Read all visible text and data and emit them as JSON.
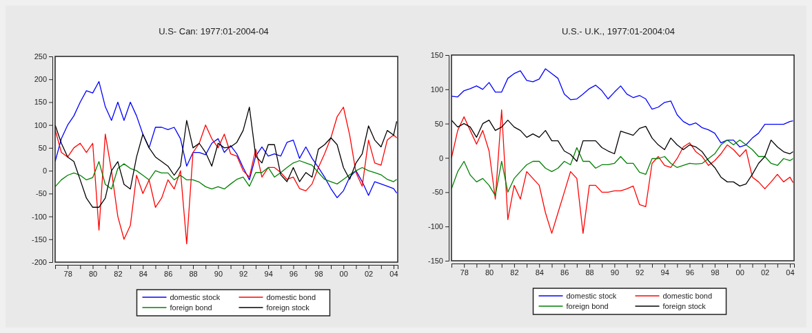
{
  "chart_data": [
    {
      "type": "line",
      "title": "U.S- Can: 1977:01-2004-04",
      "legend": "bottom",
      "grid": false,
      "x": [
        "1977-01",
        "1977-07",
        "1978-01",
        "1978-07",
        "1979-01",
        "1979-07",
        "1980-01",
        "1980-07",
        "1981-01",
        "1981-07",
        "1982-01",
        "1982-07",
        "1983-01",
        "1983-07",
        "1984-01",
        "1984-07",
        "1985-01",
        "1985-07",
        "1986-01",
        "1986-07",
        "1987-01",
        "1987-07",
        "1988-01",
        "1988-07",
        "1989-01",
        "1989-07",
        "1990-01",
        "1990-07",
        "1991-01",
        "1991-07",
        "1992-01",
        "1992-07",
        "1993-01",
        "1993-07",
        "1994-01",
        "1994-07",
        "1995-01",
        "1995-07",
        "1996-01",
        "1996-07",
        "1997-01",
        "1997-07",
        "1998-01",
        "1998-07",
        "1999-01",
        "1999-07",
        "2000-01",
        "2000-07",
        "2001-01",
        "2001-07",
        "2002-01",
        "2002-07",
        "2003-01",
        "2003-07",
        "2004-01",
        "2004-04"
      ],
      "xlim": [
        "1977-01",
        "2004-05"
      ],
      "xticks": [
        {
          "value": "1977",
          "label": null
        },
        {
          "value": "1978",
          "label": "78"
        },
        {
          "value": "1979",
          "label": null
        },
        {
          "value": "1980",
          "label": "80"
        },
        {
          "value": "1981",
          "label": null
        },
        {
          "value": "1982",
          "label": "82"
        },
        {
          "value": "1983",
          "label": null
        },
        {
          "value": "1984",
          "label": "84"
        },
        {
          "value": "1985",
          "label": null
        },
        {
          "value": "1986",
          "label": "86"
        },
        {
          "value": "1987",
          "label": null
        },
        {
          "value": "1988",
          "label": "88"
        },
        {
          "value": "1989",
          "label": null
        },
        {
          "value": "1990",
          "label": "90"
        },
        {
          "value": "1991",
          "label": null
        },
        {
          "value": "1992",
          "label": "92"
        },
        {
          "value": "1993",
          "label": null
        },
        {
          "value": "1994",
          "label": "94"
        },
        {
          "value": "1995",
          "label": null
        },
        {
          "value": "1996",
          "label": "96"
        },
        {
          "value": "1997",
          "label": null
        },
        {
          "value": "1998",
          "label": "98"
        },
        {
          "value": "1999",
          "label": null
        },
        {
          "value": "2000",
          "label": "00"
        },
        {
          "value": "2001",
          "label": null
        },
        {
          "value": "2002",
          "label": "02"
        },
        {
          "value": "2003",
          "label": null
        },
        {
          "value": "2004",
          "label": "04"
        }
      ],
      "ylim": [
        -200,
        250
      ],
      "yticks": [
        -200,
        -150,
        -100,
        -50,
        0,
        50,
        100,
        150,
        200,
        250
      ],
      "series": [
        {
          "name": "domestic stock",
          "color": "#0000ff",
          "values": [
            20,
            70,
            100,
            120,
            150,
            175,
            170,
            195,
            140,
            110,
            150,
            110,
            150,
            120,
            80,
            50,
            95,
            95,
            90,
            95,
            70,
            10,
            40,
            40,
            35,
            60,
            70,
            40,
            55,
            37,
            7,
            -20,
            32,
            52,
            32,
            37,
            32,
            62,
            67,
            27,
            52,
            27,
            7,
            -14,
            -39,
            -59,
            -44,
            -14,
            0,
            -24,
            -54,
            -24,
            -29,
            -34,
            -39,
            -49
          ]
        },
        {
          "name": "domestic bond",
          "color": "#ff0000",
          "values": [
            90,
            40,
            30,
            50,
            60,
            40,
            60,
            -130,
            80,
            0,
            -100,
            -150,
            -120,
            -10,
            -50,
            -20,
            -80,
            -60,
            -20,
            -40,
            0,
            -160,
            40,
            60,
            100,
            70,
            50,
            80,
            37,
            32,
            0,
            -14,
            47,
            -14,
            7,
            7,
            -4,
            -19,
            -14,
            -39,
            -44,
            -29,
            7,
            37,
            72,
            118,
            139,
            78,
            -4,
            -34,
            67,
            17,
            12,
            67,
            78,
            72
          ]
        },
        {
          "name": "foreign bond",
          "color": "#008000",
          "values": [
            -35,
            -20,
            -10,
            -5,
            -10,
            -20,
            -15,
            20,
            -30,
            -40,
            5,
            15,
            5,
            0,
            -10,
            -20,
            0,
            -5,
            -5,
            -20,
            -10,
            -20,
            -20,
            -25,
            -35,
            -40,
            -35,
            -40,
            -29,
            -19,
            -14,
            -34,
            -4,
            -4,
            7,
            -14,
            -4,
            7,
            17,
            22,
            17,
            12,
            -4,
            -19,
            -24,
            -29,
            -19,
            -9,
            0,
            7,
            0,
            -4,
            -9,
            -19,
            -24,
            -19
          ]
        },
        {
          "name": "foreign stock",
          "color": "#000000",
          "values": [
            100,
            60,
            30,
            20,
            -20,
            -60,
            -80,
            -80,
            -60,
            0,
            20,
            -30,
            -40,
            30,
            80,
            50,
            30,
            20,
            10,
            -10,
            10,
            110,
            50,
            60,
            40,
            10,
            60,
            50,
            52,
            62,
            88,
            139,
            32,
            17,
            57,
            57,
            -9,
            -24,
            7,
            -24,
            -4,
            -14,
            47,
            57,
            72,
            57,
            7,
            -19,
            17,
            37,
            98,
            67,
            52,
            88,
            78,
            108
          ]
        }
      ]
    },
    {
      "type": "line",
      "title": "U.S.- U.K., 1977:01-2004:04",
      "legend": "bottom",
      "grid": false,
      "x": [
        "1977-01",
        "1977-07",
        "1978-01",
        "1978-07",
        "1979-01",
        "1979-07",
        "1980-01",
        "1980-07",
        "1981-01",
        "1981-07",
        "1982-01",
        "1982-07",
        "1983-01",
        "1983-07",
        "1984-01",
        "1984-07",
        "1985-01",
        "1985-07",
        "1986-01",
        "1986-07",
        "1987-01",
        "1987-07",
        "1988-01",
        "1988-07",
        "1989-01",
        "1989-07",
        "1990-01",
        "1990-07",
        "1991-01",
        "1991-07",
        "1992-01",
        "1992-07",
        "1993-01",
        "1993-07",
        "1994-01",
        "1994-07",
        "1995-01",
        "1995-07",
        "1996-01",
        "1996-07",
        "1997-01",
        "1997-07",
        "1998-01",
        "1998-07",
        "1999-01",
        "1999-07",
        "2000-01",
        "2000-07",
        "2001-01",
        "2001-07",
        "2002-01",
        "2002-07",
        "2003-01",
        "2003-07",
        "2004-01",
        "2004-04"
      ],
      "xlim": [
        "1977-01",
        "2004-05"
      ],
      "xticks": [
        {
          "value": "1977",
          "label": null
        },
        {
          "value": "1978",
          "label": "78"
        },
        {
          "value": "1979",
          "label": null
        },
        {
          "value": "1980",
          "label": "80"
        },
        {
          "value": "1981",
          "label": null
        },
        {
          "value": "1982",
          "label": "82"
        },
        {
          "value": "1983",
          "label": null
        },
        {
          "value": "1984",
          "label": "84"
        },
        {
          "value": "1985",
          "label": null
        },
        {
          "value": "1986",
          "label": "86"
        },
        {
          "value": "1987",
          "label": null
        },
        {
          "value": "1988",
          "label": "88"
        },
        {
          "value": "1989",
          "label": null
        },
        {
          "value": "1990",
          "label": "90"
        },
        {
          "value": "1991",
          "label": null
        },
        {
          "value": "1992",
          "label": "92"
        },
        {
          "value": "1993",
          "label": null
        },
        {
          "value": "1994",
          "label": "94"
        },
        {
          "value": "1995",
          "label": null
        },
        {
          "value": "1996",
          "label": "96"
        },
        {
          "value": "1997",
          "label": null
        },
        {
          "value": "1998",
          "label": "98"
        },
        {
          "value": "1999",
          "label": null
        },
        {
          "value": "2000",
          "label": "00"
        },
        {
          "value": "2001",
          "label": null
        },
        {
          "value": "2002",
          "label": "02"
        },
        {
          "value": "2003",
          "label": null
        },
        {
          "value": "2004",
          "label": "04"
        }
      ],
      "ylim": [
        -150,
        150
      ],
      "yticks": [
        -150,
        -100,
        -50,
        0,
        50,
        100,
        150
      ],
      "series": [
        {
          "name": "domestic stock",
          "color": "#0000ff",
          "values": [
            90,
            89,
            98,
            101,
            105,
            100,
            110,
            96,
            96,
            116,
            123,
            127,
            113,
            111,
            115,
            130,
            123,
            116,
            93,
            85,
            86,
            93,
            101,
            106,
            98,
            86,
            96,
            105,
            93,
            88,
            91,
            86,
            71,
            74,
            81,
            83,
            63,
            53,
            48,
            51,
            44,
            41,
            36,
            22,
            26,
            26,
            16,
            19,
            29,
            36,
            49,
            49,
            49,
            49,
            53,
            54
          ]
        },
        {
          "name": "domestic bond",
          "color": "#ff0000",
          "values": [
            0,
            40,
            60,
            40,
            20,
            40,
            10,
            -60,
            70,
            -90,
            -40,
            -60,
            -20,
            -30,
            -40,
            -80,
            -110,
            -80,
            -50,
            -20,
            -30,
            -110,
            -40,
            -40,
            -50,
            -50,
            -48,
            -48,
            -45,
            -41,
            -68,
            -71,
            -8,
            2,
            -11,
            -14,
            -1,
            16,
            22,
            9,
            2,
            -11,
            -4,
            6,
            19,
            12,
            2,
            12,
            -28,
            -35,
            -45,
            -35,
            -24,
            -35,
            -28,
            -36
          ]
        },
        {
          "name": "foreign bond",
          "color": "#008000",
          "values": [
            -45,
            -20,
            -5,
            -25,
            -35,
            -30,
            -40,
            -55,
            -5,
            -50,
            -30,
            -20,
            -10,
            -5,
            -5,
            -15,
            -20,
            -15,
            -5,
            -10,
            15,
            -5,
            -5,
            -15,
            -10,
            -10,
            -8,
            2,
            -8,
            -8,
            -21,
            -24,
            -1,
            -1,
            2,
            -8,
            -14,
            -11,
            -8,
            -9,
            -8,
            -1,
            6,
            19,
            26,
            19,
            26,
            19,
            12,
            2,
            2,
            -8,
            -11,
            -1,
            -4,
            -1
          ]
        },
        {
          "name": "foreign stock",
          "color": "#000000",
          "values": [
            55,
            45,
            50,
            45,
            30,
            50,
            55,
            40,
            45,
            55,
            45,
            40,
            30,
            35,
            30,
            40,
            25,
            25,
            10,
            5,
            -5,
            25,
            25,
            25,
            15,
            10,
            6,
            39,
            36,
            33,
            43,
            46,
            29,
            19,
            12,
            29,
            19,
            12,
            19,
            16,
            9,
            -4,
            -14,
            -28,
            -35,
            -35,
            -41,
            -38,
            -24,
            -8,
            2,
            26,
            16,
            9,
            6,
            9
          ]
        }
      ]
    }
  ]
}
